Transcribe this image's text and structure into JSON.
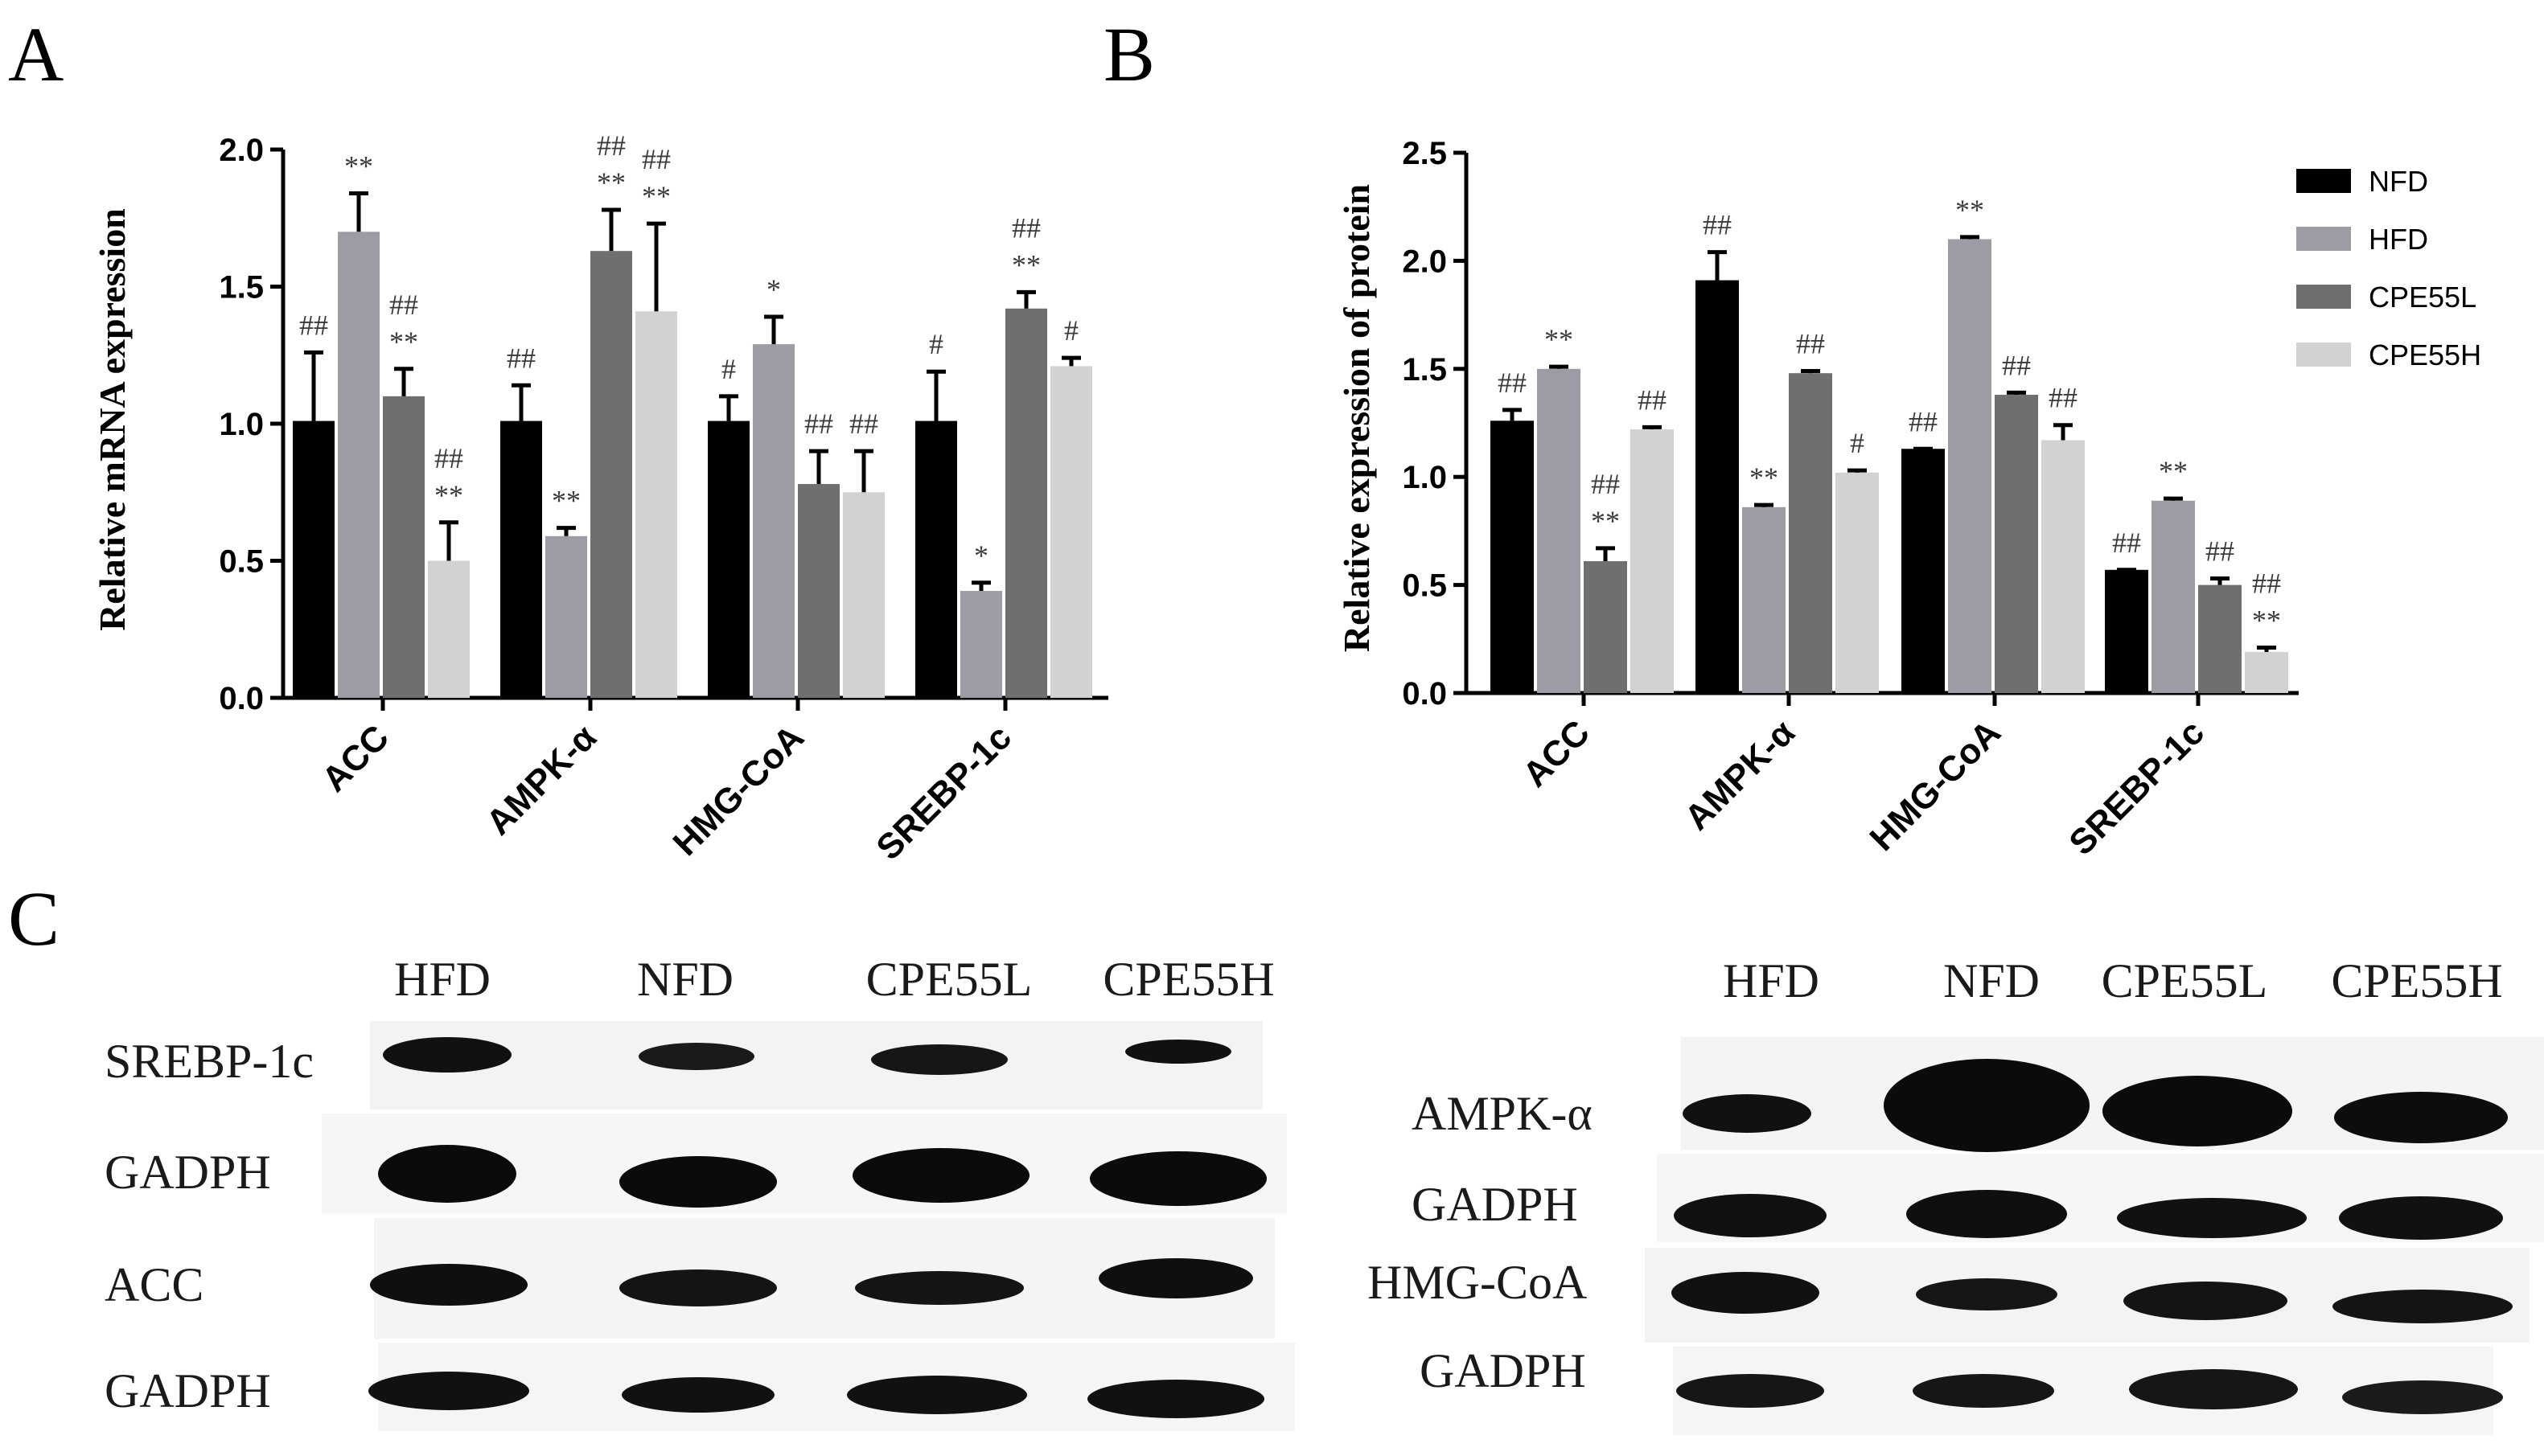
{
  "figure": {
    "panels": {
      "a": "A",
      "b": "B",
      "c": "C"
    }
  },
  "colors": {
    "NFD": "#000000",
    "HFD": "#9d9ba3",
    "CPE55L": "#6f6f6f",
    "CPE55H": "#d2d2d2"
  },
  "chart_data": [
    {
      "id": "A",
      "type": "bar",
      "title": "",
      "xlabel": "",
      "ylabel": "Relative mRNA expression",
      "ylim": [
        0,
        2.0
      ],
      "yticks": [
        "0.0",
        "0.5",
        "1.0",
        "1.5",
        "2.0"
      ],
      "categories": [
        "ACC",
        "AMPK-α",
        "HMG-CoA",
        "SREBP-1c"
      ],
      "legend": "none",
      "series": [
        {
          "name": "NFD",
          "values": [
            1.01,
            1.01,
            1.01,
            1.01
          ],
          "errors": [
            0.25,
            0.13,
            0.09,
            0.18
          ],
          "sig_top": [
            "",
            "",
            "",
            ""
          ],
          "sig_bottom": [
            "##",
            "##",
            "#",
            "#"
          ]
        },
        {
          "name": "HFD",
          "values": [
            1.7,
            0.59,
            1.29,
            0.39
          ],
          "errors": [
            0.14,
            0.03,
            0.1,
            0.03
          ],
          "sig_top": [
            "",
            "",
            "",
            ""
          ],
          "sig_bottom": [
            "**",
            "**",
            "*",
            "*"
          ]
        },
        {
          "name": "CPE55L",
          "values": [
            1.1,
            1.63,
            0.78,
            1.42
          ],
          "errors": [
            0.1,
            0.15,
            0.12,
            0.06
          ],
          "sig_top": [
            "##",
            "##",
            "",
            "##"
          ],
          "sig_bottom": [
            "**",
            "**",
            "##",
            "**"
          ]
        },
        {
          "name": "CPE55H",
          "values": [
            0.5,
            1.41,
            0.75,
            1.21
          ],
          "errors": [
            0.14,
            0.32,
            0.15,
            0.03
          ],
          "sig_top": [
            "##",
            "##",
            "",
            ""
          ],
          "sig_bottom": [
            "**",
            "**",
            "##",
            "#"
          ]
        }
      ]
    },
    {
      "id": "B",
      "type": "bar",
      "title": "",
      "xlabel": "",
      "ylabel": "Relative  expression of protein",
      "ylim": [
        0,
        2.5
      ],
      "yticks": [
        "0.0",
        "0.5",
        "1.0",
        "1.5",
        "2.0",
        "2.5"
      ],
      "categories": [
        "ACC",
        "AMPK-α",
        "HMG-CoA",
        "SREBP-1c"
      ],
      "legend": "top-right",
      "series": [
        {
          "name": "NFD",
          "values": [
            1.26,
            1.91,
            1.13,
            0.57
          ],
          "errors": [
            0.05,
            0.13,
            0.0,
            0.0
          ],
          "sig_top": [
            "",
            "",
            "",
            ""
          ],
          "sig_bottom": [
            "##",
            "##",
            "##",
            "##"
          ]
        },
        {
          "name": "HFD",
          "values": [
            1.5,
            0.86,
            2.1,
            0.89
          ],
          "errors": [
            0.01,
            0.01,
            0.01,
            0.01
          ],
          "sig_top": [
            "",
            "",
            "",
            ""
          ],
          "sig_bottom": [
            "**",
            "**",
            "**",
            "**"
          ]
        },
        {
          "name": "CPE55L",
          "values": [
            0.61,
            1.48,
            1.38,
            0.5
          ],
          "errors": [
            0.06,
            0.01,
            0.01,
            0.03
          ],
          "sig_top": [
            "##",
            "",
            "",
            ""
          ],
          "sig_bottom": [
            "**",
            "##",
            "##",
            "##"
          ]
        },
        {
          "name": "CPE55H",
          "values": [
            1.22,
            1.02,
            1.17,
            0.19
          ],
          "errors": [
            0.01,
            0.01,
            0.07,
            0.02
          ],
          "sig_top": [
            "",
            "",
            "",
            "##"
          ],
          "sig_bottom": [
            "##",
            "#",
            "##",
            "**"
          ]
        }
      ]
    }
  ],
  "blots": {
    "left": {
      "columns": [
        "HFD",
        "NFD",
        "CPE55L",
        "CPE55H"
      ],
      "rows": [
        "SREBP-1c",
        "GADPH",
        "ACC",
        "GADPH"
      ]
    },
    "right": {
      "columns": [
        "HFD",
        "NFD",
        "CPE55L",
        "CPE55H"
      ],
      "rows": [
        "AMPK-α",
        "GADPH",
        "HMG-CoA",
        "GADPH"
      ]
    }
  }
}
